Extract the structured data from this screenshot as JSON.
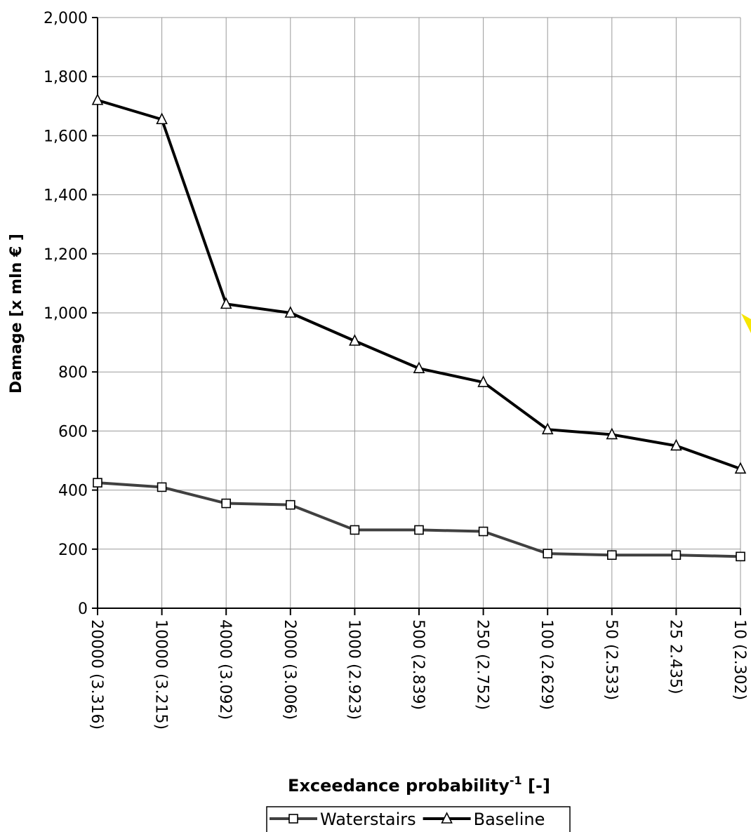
{
  "chart_data": {
    "type": "line",
    "categories": [
      "20000 (3.316)",
      "10000 (3.215)",
      "4000 (3.092)",
      "2000 (3.006)",
      "1000 (2.923)",
      "500 (2.839)",
      "250 (2.752)",
      "100 (2.629)",
      "50 (2.533)",
      "25 2.435)",
      "10 (2.302)"
    ],
    "series": [
      {
        "name": "Waterstairs",
        "marker": "square",
        "color": "#404040",
        "values": [
          425,
          410,
          355,
          350,
          265,
          265,
          260,
          185,
          180,
          180,
          175
        ]
      },
      {
        "name": "Baseline",
        "marker": "triangle",
        "color": "#000000",
        "values": [
          1720,
          1655,
          1030,
          1000,
          905,
          812,
          765,
          605,
          588,
          550,
          472
        ]
      }
    ],
    "ylim": [
      0,
      2000
    ],
    "yticks": [
      0,
      200,
      400,
      600,
      800,
      1000,
      1200,
      1400,
      1600,
      1800,
      2000
    ],
    "ytick_labels": [
      "0",
      "200",
      "400",
      "600",
      "800",
      "1,000",
      "1,200",
      "1,400",
      "1,600",
      "1,800",
      "2,000"
    ],
    "ylabel": "Damage [x mln € ]",
    "xlabel": "Exceedance probability",
    "xlabel_sup": "-1",
    "xlabel_suffix": " [-]",
    "grid": true,
    "legend": "bottom"
  }
}
